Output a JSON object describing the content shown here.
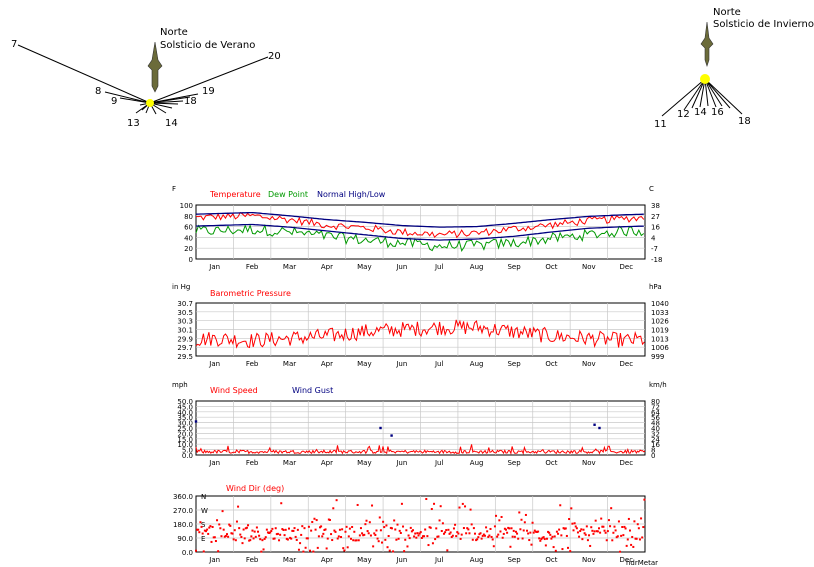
{
  "sun_diagrams": [
    {
      "north_label": "Norte",
      "season_label": "Solsticio de Verano",
      "hour_labels": [
        "7",
        "8",
        "9",
        "13",
        "14",
        "18",
        "19",
        "20"
      ]
    },
    {
      "north_label": "Norte",
      "season_label": "Solsticio de Invierno",
      "hour_labels": [
        "11",
        "12",
        "14",
        "16",
        "18"
      ]
    }
  ],
  "colors": {
    "red": "#ff0000",
    "green": "#009900",
    "blue": "#000080",
    "sun": "#ffff00",
    "grid": "#c8c8c8"
  },
  "months": [
    "Jan",
    "Feb",
    "Mar",
    "Apr",
    "May",
    "Jun",
    "Jul",
    "Aug",
    "Sep",
    "Oct",
    "Nov",
    "Dec"
  ],
  "chart_data": [
    {
      "type": "line",
      "left_unit": "F",
      "right_unit": "C",
      "legend": [
        {
          "name": "Temperature",
          "color": "#ff0000"
        },
        {
          "name": "Dew Point",
          "color": "#009900"
        },
        {
          "name": "Normal High/Low",
          "color": "#000080"
        }
      ],
      "y_ticks": [
        "100",
        "80",
        "60",
        "40",
        "20",
        "0"
      ],
      "y_right_ticks": [
        "38",
        "27",
        "16",
        "4",
        "-7",
        "-18"
      ],
      "ylim": [
        0,
        100
      ],
      "normal_high_monthly": [
        84,
        86,
        80,
        73,
        68,
        62,
        59,
        60,
        66,
        73,
        79,
        82
      ],
      "normal_low_monthly": [
        62,
        64,
        59,
        52,
        45,
        38,
        35,
        37,
        42,
        50,
        57,
        60
      ],
      "temperature_monthly": [
        78,
        80,
        73,
        63,
        58,
        50,
        45,
        48,
        56,
        63,
        71,
        75
      ],
      "dew_point_monthly": [
        52,
        55,
        50,
        42,
        35,
        30,
        24,
        25,
        30,
        38,
        45,
        52
      ]
    },
    {
      "type": "line",
      "left_unit": "in Hg",
      "right_unit": "hPa",
      "legend": [
        {
          "name": "Barometric Pressure",
          "color": "#ff0000"
        }
      ],
      "y_ticks": [
        "30.7",
        "30.5",
        "30.3",
        "30.1",
        "29.9",
        "29.7",
        "29.5"
      ],
      "y_right_ticks": [
        "1040",
        "1033",
        "1026",
        "1019",
        "1013",
        "1006",
        "999"
      ],
      "ylim": [
        29.5,
        30.7
      ],
      "pressure_monthly": [
        29.9,
        29.85,
        29.9,
        29.95,
        30.05,
        30.1,
        30.15,
        30.15,
        30.05,
        29.95,
        29.9,
        29.85
      ]
    },
    {
      "type": "line",
      "left_unit": "mph",
      "right_unit": "km/h",
      "legend": [
        {
          "name": "Wind Speed",
          "color": "#ff0000"
        },
        {
          "name": "Wind Gust",
          "color": "#000080"
        }
      ],
      "y_ticks": [
        "50.0",
        "45.0",
        "40.0",
        "35.0",
        "30.0",
        "25.0",
        "20.0",
        "15.0",
        "10.0",
        "5.0",
        "0.0"
      ],
      "y_right_ticks": [
        "80",
        "72",
        "64",
        "56",
        "48",
        "40",
        "32",
        "24",
        "16",
        "8",
        "0"
      ],
      "ylim": [
        0,
        50
      ],
      "gusts": [
        {
          "day": 0,
          "value": 31
        },
        {
          "day": 150,
          "value": 25
        },
        {
          "day": 159,
          "value": 18
        },
        {
          "day": 324,
          "value": 28
        },
        {
          "day": 328,
          "value": 25
        }
      ],
      "wind_speed_typical": 3
    },
    {
      "type": "scatter",
      "left_unit": "",
      "legend": [
        {
          "name": "Wind Dir (deg)",
          "color": "#ff0000"
        }
      ],
      "y_ticks": [
        "360.0",
        "270.0",
        "180.0",
        "90.0",
        "0.0"
      ],
      "compass": [
        "N",
        "W",
        "S",
        "E"
      ],
      "ylim": [
        0,
        360
      ],
      "watermark": "hdrMetar"
    }
  ]
}
